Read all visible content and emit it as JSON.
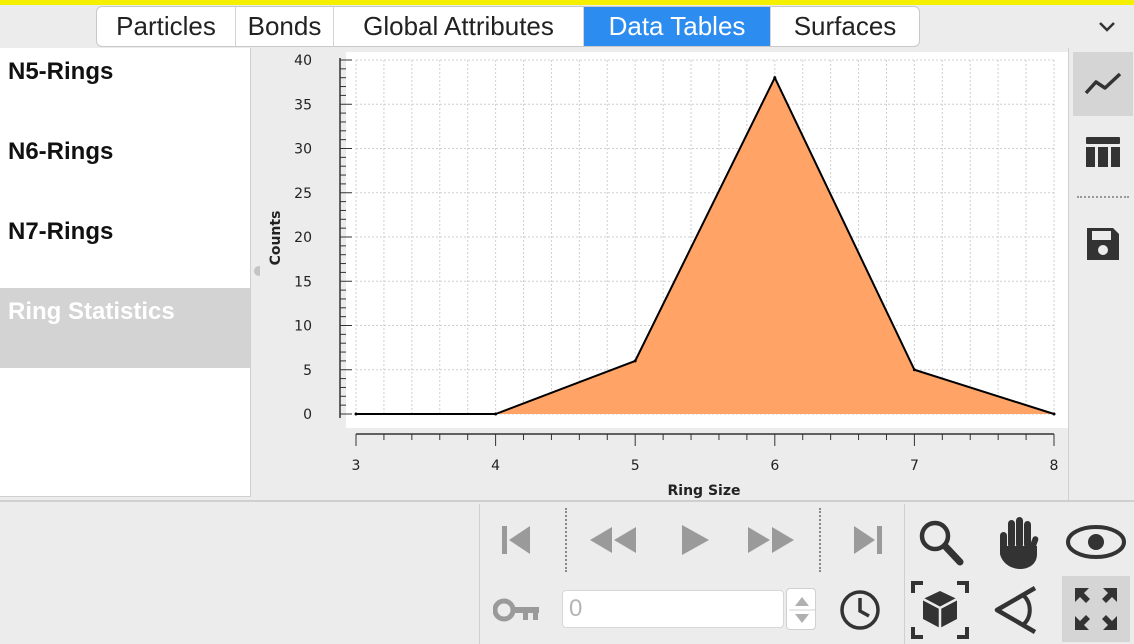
{
  "tabs": [
    {
      "label": "Particles"
    },
    {
      "label": "Bonds"
    },
    {
      "label": "Global Attributes"
    },
    {
      "label": "Data Tables",
      "active": true
    },
    {
      "label": "Surfaces"
    }
  ],
  "tabs_menu_icon": "chevron-down-icon",
  "data_tables": [
    {
      "label": "N5-Rings"
    },
    {
      "label": "N6-Rings"
    },
    {
      "label": "N7-Rings"
    },
    {
      "label": "Ring Statistics",
      "selected": true
    }
  ],
  "chart_data": {
    "type": "area",
    "x": [
      3,
      4,
      5,
      6,
      7,
      8
    ],
    "y": [
      0,
      0,
      6,
      38,
      5,
      0
    ],
    "xlabel": "Ring Size",
    "ylabel": "Counts",
    "xlim": [
      3,
      8
    ],
    "ylim": [
      0,
      40
    ],
    "xticks": [
      "3",
      "4",
      "5",
      "6",
      "7",
      "8"
    ],
    "yticks": [
      "0",
      "5",
      "10",
      "15",
      "20",
      "25",
      "30",
      "35",
      "40"
    ],
    "grid": true,
    "fill_color": "#ffa366",
    "line_color": "#000000"
  },
  "view_buttons": [
    {
      "icon": "line-chart-icon",
      "active": true
    },
    {
      "icon": "table-icon",
      "active": false
    },
    {
      "icon": "save-icon",
      "active": false
    }
  ],
  "animation": {
    "frame_value": "0",
    "controls": [
      "jump-to-start-icon",
      "step-back-icon",
      "play-icon",
      "step-forward-icon",
      "jump-to-end-icon",
      "key-icon",
      "clock-icon"
    ]
  },
  "viewport_tools": [
    "zoom-icon",
    "pan-hand-icon",
    "orbit-eye-icon",
    "zoom-scene-extents-icon",
    "fov-icon",
    "maximize-viewport-icon"
  ],
  "colors": {
    "active_tab": "#2d8cf0",
    "selected_item": "#d3d3d3",
    "highlight_bar": "#f5f000"
  }
}
